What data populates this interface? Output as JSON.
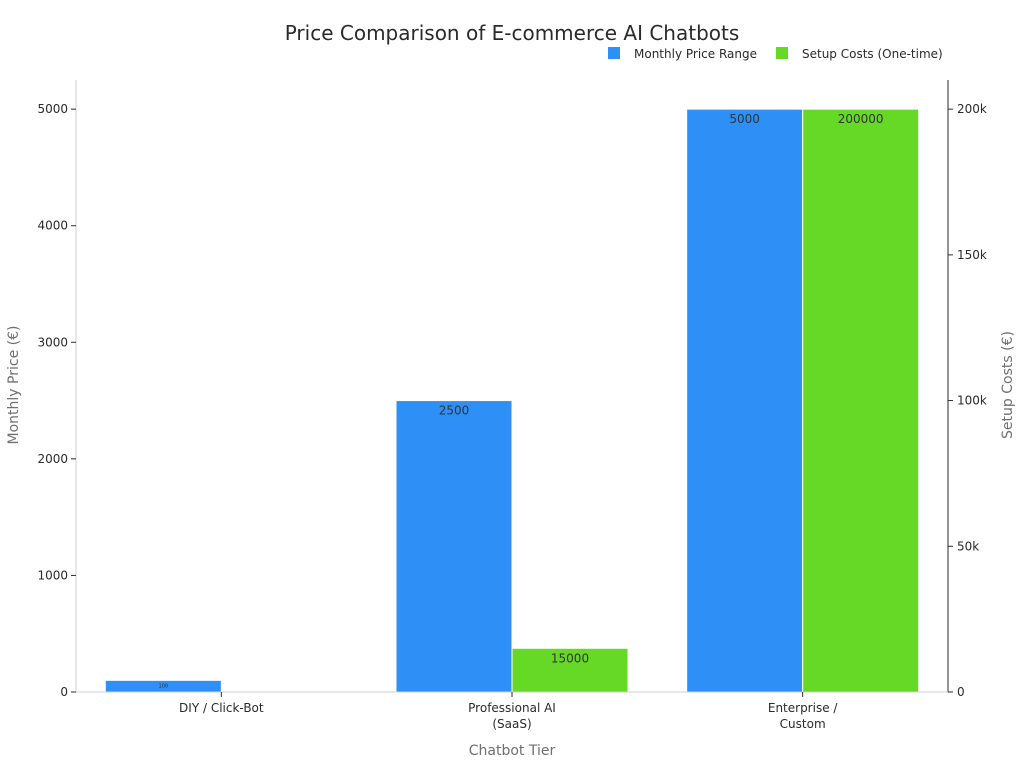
{
  "chart_data": {
    "type": "bar",
    "title": "Price Comparison of E-commerce AI Chatbots",
    "xlabel": "Chatbot Tier",
    "ylabel": "Monthly Price (€)",
    "y2label": "Setup Costs (€)",
    "categories": [
      "DIY / Click-Bot",
      "Professional AI\n(SaaS)",
      "Enterprise /\nCustom"
    ],
    "series": [
      {
        "name": "Monthly Price Range",
        "axis": "left",
        "color": "#2e90f7",
        "values": [
          100,
          2500,
          5000
        ],
        "labels": [
          "100",
          "2500",
          "5000"
        ]
      },
      {
        "name": "Setup Costs (One-time)",
        "axis": "right",
        "color": "#66d926",
        "values": [
          0,
          15000,
          200000
        ],
        "labels": [
          "",
          "15000",
          "200000"
        ]
      }
    ],
    "ylim": [
      0,
      5250
    ],
    "y2lim": [
      0,
      210000
    ],
    "yticks": [
      0,
      1000,
      2000,
      3000,
      4000,
      5000
    ],
    "yticklabels": [
      "0",
      "1000",
      "2000",
      "3000",
      "4000",
      "5000"
    ],
    "y2ticks": [
      0,
      50000,
      100000,
      150000,
      200000
    ],
    "y2ticklabels": [
      "0",
      "50k",
      "100k",
      "150k",
      "200k"
    ],
    "grid": false,
    "legend_position": "top-right"
  }
}
